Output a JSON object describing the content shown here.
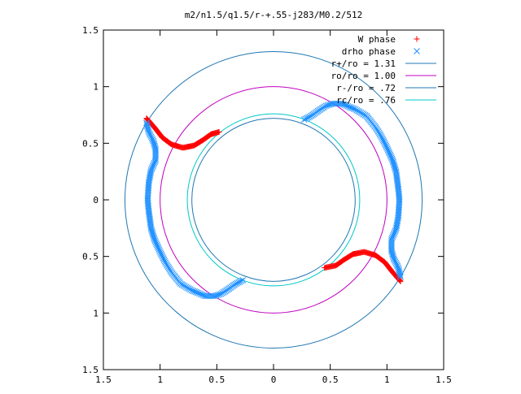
{
  "chart_data": {
    "type": "scatter",
    "title": "m2/n1.5/q1.5/r-+.55-j283/M0.2/512",
    "xlim": [
      -1.5,
      1.5
    ],
    "ylim": [
      -1.5,
      1.5
    ],
    "x_ticks": [
      {
        "value": -1.5,
        "label": "1.5"
      },
      {
        "value": -1.0,
        "label": "1"
      },
      {
        "value": -0.5,
        "label": "0.5"
      },
      {
        "value": 0,
        "label": "0"
      },
      {
        "value": 0.5,
        "label": "0.5"
      },
      {
        "value": 1.0,
        "label": "1"
      },
      {
        "value": 1.5,
        "label": "1.5"
      }
    ],
    "y_ticks": [
      {
        "value": 1.5,
        "label": "1.5"
      },
      {
        "value": 1.0,
        "label": "1"
      },
      {
        "value": 0.5,
        "label": "0.5"
      },
      {
        "value": 0,
        "label": "0"
      },
      {
        "value": -0.5,
        "label": "0.5"
      },
      {
        "value": -1.0,
        "label": "1"
      },
      {
        "value": -1.5,
        "label": "1.5"
      }
    ],
    "grid": false,
    "legend_position": "top-right",
    "series": [
      {
        "name": "W phase",
        "kind": "points",
        "marker": "plus",
        "color": "#ff0000",
        "arms": [
          [
            [
              -1.12,
              0.72
            ],
            [
              -1.05,
              0.64
            ],
            [
              -0.98,
              0.55
            ],
            [
              -0.9,
              0.49
            ],
            [
              -0.8,
              0.46
            ],
            [
              -0.7,
              0.48
            ],
            [
              -0.62,
              0.53
            ],
            [
              -0.55,
              0.58
            ],
            [
              -0.48,
              0.6
            ]
          ],
          [
            [
              1.12,
              -0.72
            ],
            [
              1.05,
              -0.64
            ],
            [
              0.98,
              -0.55
            ],
            [
              0.9,
              -0.49
            ],
            [
              0.8,
              -0.46
            ],
            [
              0.7,
              -0.48
            ],
            [
              0.62,
              -0.53
            ],
            [
              0.55,
              -0.58
            ],
            [
              0.45,
              -0.6
            ]
          ]
        ]
      },
      {
        "name": "drho phase",
        "kind": "points",
        "marker": "cross",
        "color": "#1e90ff",
        "arms": [
          [
            [
              -1.12,
              0.68
            ],
            [
              -1.1,
              0.6
            ],
            [
              -1.06,
              0.52
            ],
            [
              -1.04,
              0.45
            ],
            [
              -1.04,
              0.35
            ],
            [
              -1.08,
              0.26
            ],
            [
              -1.1,
              0.15
            ],
            [
              -1.11,
              0.0
            ],
            [
              -1.1,
              -0.1
            ],
            [
              -1.08,
              -0.25
            ],
            [
              -1.05,
              -0.35
            ],
            [
              -1.0,
              -0.46
            ],
            [
              -0.95,
              -0.56
            ],
            [
              -0.9,
              -0.64
            ],
            [
              -0.82,
              -0.74
            ],
            [
              -0.72,
              -0.8
            ],
            [
              -0.6,
              -0.85
            ],
            [
              -0.52,
              -0.85
            ],
            [
              -0.46,
              -0.83
            ],
            [
              -0.4,
              -0.79
            ],
            [
              -0.33,
              -0.74
            ],
            [
              -0.27,
              -0.71
            ]
          ],
          [
            [
              1.12,
              -0.68
            ],
            [
              1.1,
              -0.6
            ],
            [
              1.06,
              -0.52
            ],
            [
              1.04,
              -0.45
            ],
            [
              1.04,
              -0.35
            ],
            [
              1.08,
              -0.26
            ],
            [
              1.1,
              -0.15
            ],
            [
              1.11,
              0.0
            ],
            [
              1.1,
              0.1
            ],
            [
              1.08,
              0.25
            ],
            [
              1.05,
              0.35
            ],
            [
              1.0,
              0.46
            ],
            [
              0.95,
              0.56
            ],
            [
              0.9,
              0.64
            ],
            [
              0.82,
              0.74
            ],
            [
              0.72,
              0.8
            ],
            [
              0.6,
              0.85
            ],
            [
              0.52,
              0.85
            ],
            [
              0.46,
              0.83
            ],
            [
              0.4,
              0.79
            ],
            [
              0.33,
              0.74
            ],
            [
              0.27,
              0.71
            ]
          ]
        ]
      },
      {
        "name": "r+/ro = 1.31",
        "kind": "circle",
        "radius": 1.31,
        "color": "#1f77b4"
      },
      {
        "name": "ro/ro = 1.00",
        "kind": "circle",
        "radius": 1.0,
        "color": "#c000c0"
      },
      {
        "name": "r-/ro = .72",
        "kind": "circle",
        "radius": 0.72,
        "color": "#1f77b4"
      },
      {
        "name": "rc/ro = .76",
        "kind": "circle",
        "radius": 0.76,
        "color": "#00c8c8"
      }
    ]
  }
}
